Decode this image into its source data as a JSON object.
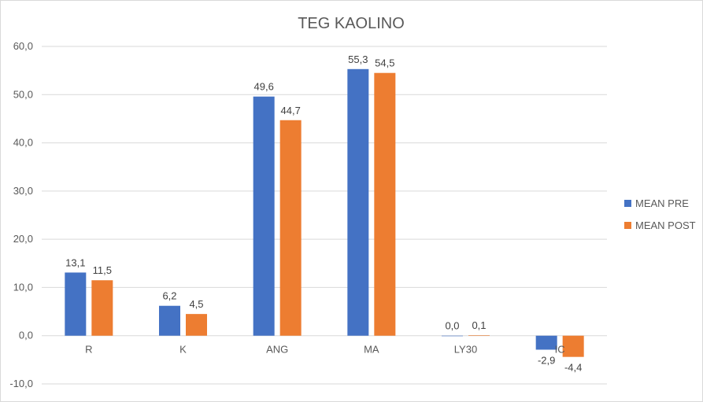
{
  "chart_data": {
    "type": "bar",
    "title": "TEG KAOLINO",
    "categories": [
      "R",
      "K",
      "ANG",
      "MA",
      "LY30",
      "IC"
    ],
    "series": [
      {
        "name": "MEAN PRE",
        "color": "#4472c4",
        "values": [
          13.1,
          6.2,
          49.6,
          55.3,
          0.0,
          -2.9
        ],
        "labels": [
          "13,1",
          "6,2",
          "49,6",
          "55,3",
          "0,0",
          "-2,9"
        ]
      },
      {
        "name": "MEAN POST",
        "color": "#ed7d31",
        "values": [
          11.5,
          4.5,
          44.7,
          54.5,
          0.1,
          -4.4
        ],
        "labels": [
          "11,5",
          "4,5",
          "44,7",
          "54,5",
          "0,1",
          "-4,4"
        ]
      }
    ],
    "ylim": [
      -10,
      60
    ],
    "yticks": [
      -10,
      0,
      10,
      20,
      30,
      40,
      50,
      60
    ],
    "ytick_labels": [
      "-10,0",
      "0,0",
      "10,0",
      "20,0",
      "30,0",
      "40,0",
      "50,0",
      "60,0"
    ],
    "grid": true,
    "legend_position": "right",
    "xlabel": "",
    "ylabel": ""
  }
}
